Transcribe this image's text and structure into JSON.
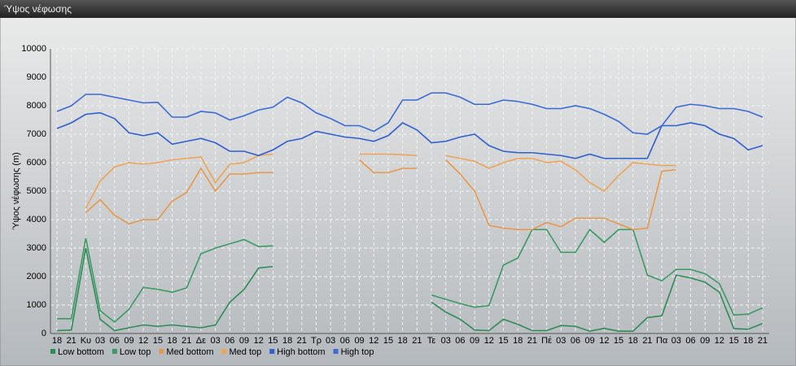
{
  "chart_data": {
    "type": "line",
    "title": "Ύψος νέφωσης",
    "ylabel": "Ύψος νέφωσης (m)",
    "categories": [
      "18",
      "21",
      "Κυ",
      "03",
      "06",
      "09",
      "12",
      "15",
      "18",
      "21",
      "Δε",
      "03",
      "06",
      "09",
      "12",
      "15",
      "18",
      "21",
      "Τρ",
      "03",
      "06",
      "09",
      "12",
      "15",
      "18",
      "21",
      "Τε",
      "03",
      "06",
      "09",
      "12",
      "15",
      "18",
      "21",
      "Πέ",
      "03",
      "06",
      "09",
      "12",
      "15",
      "18",
      "21",
      "Πα",
      "03",
      "06",
      "09",
      "12",
      "15",
      "18",
      "21"
    ],
    "ylim": [
      0,
      10000
    ],
    "yticks": [
      0,
      1000,
      2000,
      3000,
      4000,
      5000,
      6000,
      7000,
      8000,
      9000,
      10000
    ],
    "grid": true,
    "series": [
      {
        "name": "Low bottom",
        "color": "#2e8b57",
        "values": [
          100,
          120,
          3000,
          500,
          100,
          200,
          300,
          250,
          300,
          250,
          200,
          300,
          1100,
          1550,
          2300,
          2350,
          null,
          null,
          null,
          null,
          null,
          null,
          null,
          null,
          null,
          null,
          1100,
          750,
          500,
          120,
          100,
          500,
          320,
          100,
          100,
          280,
          250,
          80,
          180,
          80,
          80,
          560,
          620,
          2050,
          1950,
          1800,
          1450,
          170,
          150,
          350
        ]
      },
      {
        "name": "Low top",
        "color": "#3a9a64",
        "values": [
          520,
          520,
          3350,
          800,
          400,
          850,
          1620,
          1550,
          1450,
          1600,
          2800,
          3000,
          3150,
          3300,
          3050,
          3080,
          null,
          null,
          null,
          null,
          null,
          null,
          null,
          null,
          null,
          null,
          1350,
          1200,
          1050,
          920,
          980,
          2400,
          2650,
          3650,
          3650,
          2850,
          2850,
          3650,
          3200,
          3650,
          3650,
          2050,
          1850,
          2250,
          2250,
          2100,
          1750,
          650,
          680,
          900
        ]
      },
      {
        "name": "Med bottom",
        "color": "#e8984a",
        "values": [
          null,
          null,
          4250,
          4700,
          4150,
          3850,
          4000,
          4000,
          4650,
          4950,
          5800,
          5000,
          5600,
          5600,
          5650,
          5650,
          null,
          null,
          null,
          null,
          null,
          6100,
          5650,
          5650,
          5800,
          5800,
          null,
          6100,
          5600,
          5000,
          3800,
          3700,
          3650,
          3650,
          3900,
          3750,
          4050,
          4050,
          4050,
          3850,
          3650,
          3700,
          5700,
          5750,
          null,
          null,
          null,
          null,
          null,
          null
        ]
      },
      {
        "name": "Med top",
        "color": "#eda456",
        "values": [
          null,
          null,
          4400,
          5350,
          5850,
          6000,
          5950,
          6000,
          6100,
          6150,
          6200,
          5300,
          5950,
          6000,
          6250,
          6300,
          null,
          null,
          null,
          null,
          null,
          6300,
          6300,
          6300,
          6280,
          6250,
          null,
          6250,
          6150,
          6050,
          5800,
          6000,
          6150,
          6150,
          6000,
          6050,
          5750,
          5300,
          5000,
          5550,
          6000,
          5950,
          5900,
          5900,
          null,
          null,
          null,
          null,
          null,
          null
        ]
      },
      {
        "name": "High bottom",
        "color": "#2f5fd0",
        "values": [
          7200,
          7400,
          7700,
          7750,
          7550,
          7050,
          6950,
          7050,
          6650,
          6750,
          6850,
          6700,
          6400,
          6400,
          6250,
          6450,
          6750,
          6850,
          7100,
          7000,
          6900,
          6850,
          6750,
          6950,
          7400,
          7150,
          6700,
          6750,
          6900,
          7000,
          6600,
          6400,
          6350,
          6350,
          6300,
          6250,
          6150,
          6300,
          6150,
          6150,
          6150,
          6150,
          7300,
          7300,
          7400,
          7300,
          7000,
          6850,
          6450,
          6600
        ]
      },
      {
        "name": "High top",
        "color": "#3a6ad8",
        "values": [
          7800,
          8000,
          8400,
          8400,
          8300,
          8200,
          8100,
          8120,
          7600,
          7600,
          7800,
          7750,
          7500,
          7650,
          7850,
          7950,
          8300,
          8100,
          7750,
          7550,
          7300,
          7300,
          7100,
          7400,
          8200,
          8200,
          8450,
          8450,
          8300,
          8050,
          8050,
          8200,
          8150,
          8050,
          7900,
          7900,
          8000,
          7900,
          7700,
          7450,
          7050,
          7000,
          7300,
          7950,
          8050,
          8000,
          7900,
          7900,
          7800,
          7600
        ]
      }
    ]
  }
}
